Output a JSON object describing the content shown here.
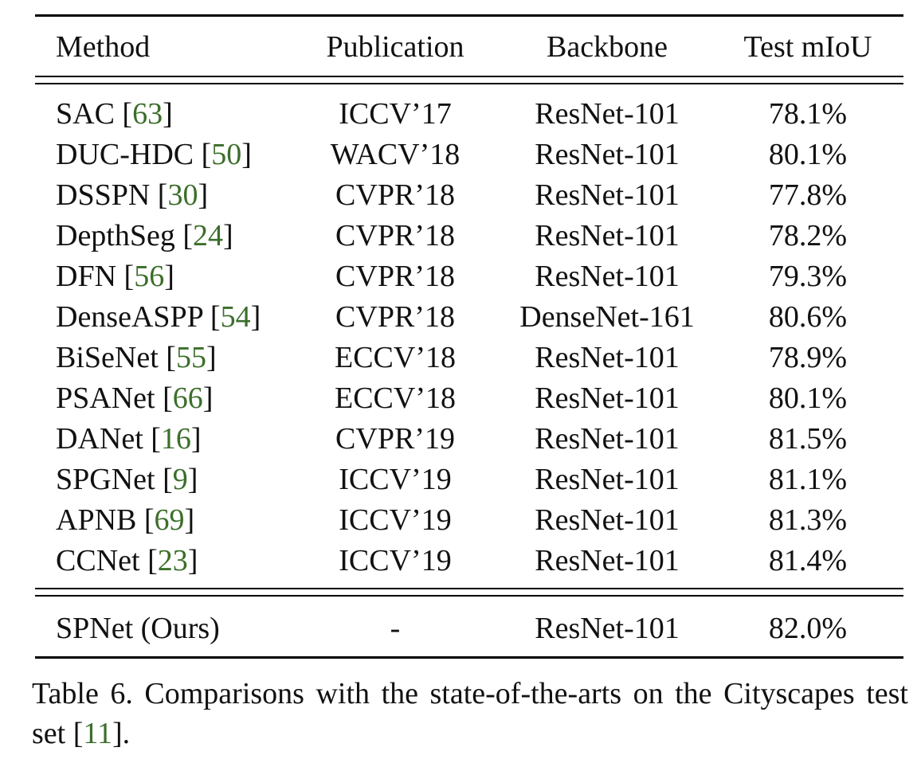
{
  "headers": [
    "Method",
    "Publication",
    "Backbone",
    "Test mIoU"
  ],
  "rows": [
    {
      "method": "SAC",
      "cite": "63",
      "publication": "ICCV’17",
      "backbone": "ResNet-101",
      "miou": "78.1%"
    },
    {
      "method": "DUC-HDC",
      "cite": "50",
      "publication": "WACV’18",
      "backbone": "ResNet-101",
      "miou": "80.1%"
    },
    {
      "method": "DSSPN",
      "cite": "30",
      "publication": "CVPR’18",
      "backbone": "ResNet-101",
      "miou": "77.8%"
    },
    {
      "method": "DepthSeg",
      "cite": "24",
      "publication": "CVPR’18",
      "backbone": "ResNet-101",
      "miou": "78.2%"
    },
    {
      "method": "DFN",
      "cite": "56",
      "publication": "CVPR’18",
      "backbone": "ResNet-101",
      "miou": "79.3%"
    },
    {
      "method": "DenseASPP",
      "cite": "54",
      "publication": "CVPR’18",
      "backbone": "DenseNet-161",
      "miou": "80.6%"
    },
    {
      "method": "BiSeNet",
      "cite": "55",
      "publication": "ECCV’18",
      "backbone": "ResNet-101",
      "miou": "78.9%"
    },
    {
      "method": "PSANet",
      "cite": "66",
      "publication": "ECCV’18",
      "backbone": "ResNet-101",
      "miou": "80.1%"
    },
    {
      "method": "DANet",
      "cite": "16",
      "publication": "CVPR’19",
      "backbone": "ResNet-101",
      "miou": "81.5%"
    },
    {
      "method": "SPGNet",
      "cite": "9",
      "publication": "ICCV’19",
      "backbone": "ResNet-101",
      "miou": "81.1%"
    },
    {
      "method": "APNB",
      "cite": "69",
      "publication": "ICCV’19",
      "backbone": "ResNet-101",
      "miou": "81.3%"
    },
    {
      "method": "CCNet",
      "cite": "23",
      "publication": "ICCV’19",
      "backbone": "ResNet-101",
      "miou": "81.4%"
    }
  ],
  "ours": {
    "method": "SPNet (Ours)",
    "publication": "-",
    "backbone": "ResNet-101",
    "miou": "82.0%"
  },
  "caption": {
    "text": "Table 6. Comparisons with the state-of-the-arts on the Cityscapes test set",
    "cite": "11",
    "end": "."
  },
  "colors": {
    "citation": "#3b6e2a",
    "text": "#111111"
  }
}
